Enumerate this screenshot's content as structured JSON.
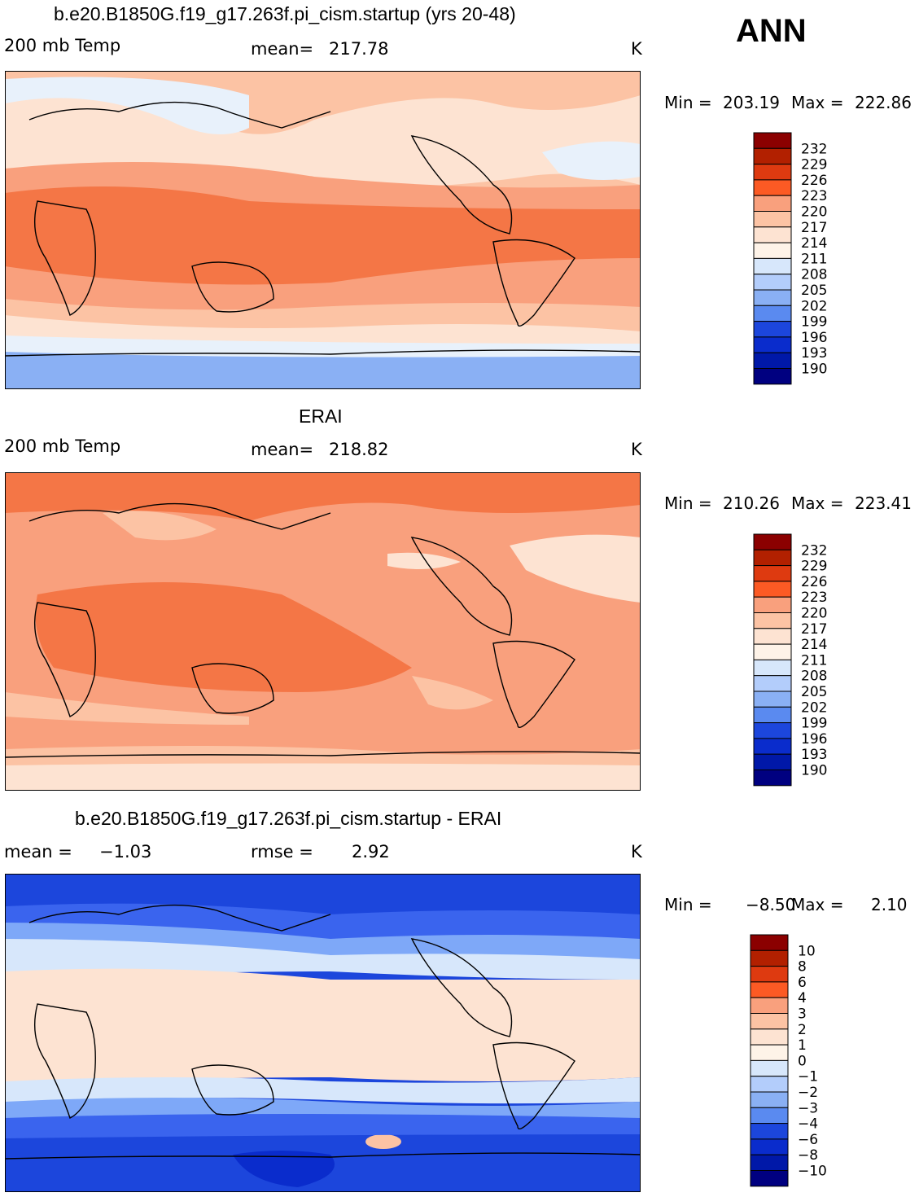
{
  "season": "ANN",
  "chart_data": [
    {
      "type": "heatmap",
      "title": "b.e20.B1850G.f19_g17.263f.pi_cism.startup (yrs 20-48)",
      "field": "200 mb Temp",
      "stat_label": "mean=",
      "stat_value": "217.78",
      "units": "K",
      "min_label": "Min =",
      "min": "203.19",
      "max_label": "Max =",
      "max": "222.86",
      "contour_levels": [
        "232",
        "229",
        "226",
        "223",
        "220",
        "217",
        "214",
        "211",
        "208",
        "205",
        "202",
        "199",
        "196",
        "193",
        "190"
      ],
      "band_colors": [
        "#e8f1fb",
        "#fde3d2",
        "#fcc3a4",
        "#f9a07d",
        "#f47646",
        "#8ab0f4"
      ]
    },
    {
      "type": "heatmap",
      "title": "ERAI",
      "field": "200 mb Temp",
      "stat_label": "mean=",
      "stat_value": "218.82",
      "units": "K",
      "min_label": "Min =",
      "min": "210.26",
      "max_label": "Max =",
      "max": "223.41",
      "contour_levels": [
        "232",
        "229",
        "226",
        "223",
        "220",
        "217",
        "214",
        "211",
        "208",
        "205",
        "202",
        "199",
        "196",
        "193",
        "190"
      ],
      "band_colors": [
        "#fde3d2",
        "#fcc3a4",
        "#f9a07d",
        "#f47646"
      ]
    },
    {
      "type": "heatmap",
      "title": "b.e20.B1850G.f19_g17.263f.pi_cism.startup - ERAI",
      "field": "mean =",
      "field_value": "−1.03",
      "stat_label": "rmse =",
      "stat_value": "2.92",
      "units": "K",
      "min_label": "Min =",
      "min": "−8.50",
      "max_label": "Max =",
      "max": "2.10",
      "contour_levels": [
        "10",
        "8",
        "6",
        "4",
        "3",
        "2",
        "1",
        "0",
        "−1",
        "−2",
        "−3",
        "−4",
        "−6",
        "−8",
        "−10"
      ],
      "band_colors": [
        "#1c46dc",
        "#3a64ee",
        "#7ea8f8",
        "#d7e7fb",
        "#fde3d2",
        "#fcc3a4"
      ]
    }
  ],
  "colorbar_colors": [
    "#8b0000",
    "#b22000",
    "#de3a10",
    "#fc5a24",
    "#f47646",
    "#f9a07d",
    "#fcc3a4",
    "#fde3d2",
    "#fef3e8",
    "#d7e7fb",
    "#b3cdfb",
    "#8ab0f4",
    "#5a8af0",
    "#3a64ee",
    "#1c46dc",
    "#0a2ccc",
    "#0018a8",
    "#000080"
  ]
}
